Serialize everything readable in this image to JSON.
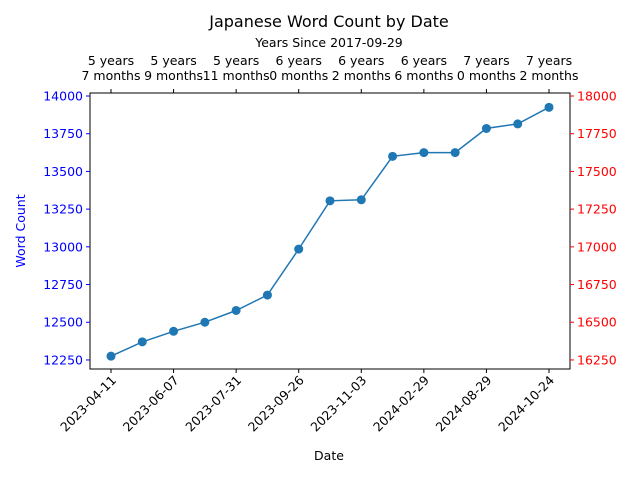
{
  "chart_data": {
    "type": "line",
    "title": "Japanese Word Count by Date",
    "xlabel": "Date",
    "ylabel": "Word Count",
    "top_axis_label": "Years Since 2017-09-29",
    "x_tick_labels": [
      "2023-04-11",
      "2023-06-07",
      "2023-07-31",
      "2023-09-26",
      "2023-11-03",
      "2024-02-29",
      "2024-08-29",
      "2024-10-24"
    ],
    "top_tick_labels": [
      [
        "5 years",
        "7 months"
      ],
      [
        "5 years",
        "9 months"
      ],
      [
        "5 years",
        "11 months"
      ],
      [
        "6 years",
        "0 months"
      ],
      [
        "6 years",
        "2 months"
      ],
      [
        "6 years",
        "6 months"
      ],
      [
        "7 years",
        "0 months"
      ],
      [
        "7 years",
        "2 months"
      ]
    ],
    "left_yticks": [
      12250,
      12500,
      12750,
      13000,
      13250,
      13500,
      13750,
      14000
    ],
    "right_yticks": [
      16250,
      16500,
      16750,
      17000,
      17250,
      17500,
      17750,
      18000
    ],
    "left_ylim": [
      12190,
      14020
    ],
    "right_ylim": [
      16190,
      18020
    ],
    "left_axis_color": "#0000ff",
    "right_axis_color": "#ff0000",
    "line_color": "#1f77b4",
    "grid": false,
    "series": [
      {
        "values": [
          12275,
          12370,
          12440,
          12500,
          12578,
          12680,
          12985,
          13305,
          13312,
          13600,
          13625,
          13625,
          13785,
          13815,
          13925
        ]
      }
    ]
  }
}
